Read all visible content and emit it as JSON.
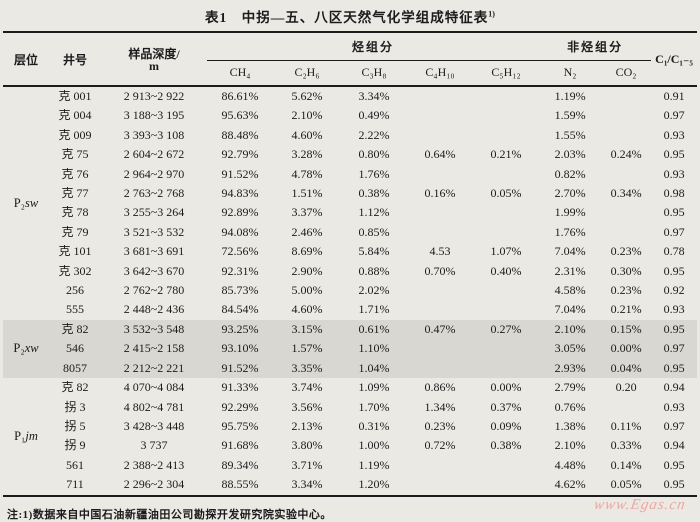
{
  "title": {
    "text": "表1　中拐—五、八区天然气化学组成特征表",
    "superscript": "1)"
  },
  "table": {
    "headers": {
      "horizon": "层位",
      "well": "井号",
      "depth_line1": "样品深度/",
      "depth_line2": "m",
      "hydrocarbon_group": "烃组分",
      "non_hydrocarbon_group": "非烃组分",
      "ratio": "C₁/C₁₋₅",
      "components": [
        "CH₄",
        "C₂H₆",
        "C₃H₈",
        "C₄H₁₀",
        "C₅H₁₂",
        "N₂",
        "CO₂"
      ]
    },
    "groups": [
      {
        "horizon_base": "P₂",
        "horizon_italic": "sw",
        "shaded": false,
        "rows": [
          [
            "克 001",
            "2 913~2 922",
            "86.61%",
            "5.62%",
            "3.34%",
            "",
            "",
            "1.19%",
            "",
            "0.91"
          ],
          [
            "克 004",
            "3 188~3 195",
            "95.63%",
            "2.10%",
            "0.49%",
            "",
            "",
            "1.59%",
            "",
            "0.97"
          ],
          [
            "克 009",
            "3 393~3 108",
            "88.48%",
            "4.60%",
            "2.22%",
            "",
            "",
            "1.55%",
            "",
            "0.93"
          ],
          [
            "克 75",
            "2 604~2 672",
            "92.79%",
            "3.28%",
            "0.80%",
            "0.64%",
            "0.21%",
            "2.03%",
            "0.24%",
            "0.95"
          ],
          [
            "克 76",
            "2 964~2 970",
            "91.52%",
            "4.78%",
            "1.76%",
            "",
            "",
            "0.82%",
            "",
            "0.93"
          ],
          [
            "克 77",
            "2 763~2 768",
            "94.83%",
            "1.51%",
            "0.38%",
            "0.16%",
            "0.05%",
            "2.70%",
            "0.34%",
            "0.98"
          ],
          [
            "克 78",
            "3 255~3 264",
            "92.89%",
            "3.37%",
            "1.12%",
            "",
            "",
            "1.99%",
            "",
            "0.95"
          ],
          [
            "克 79",
            "3 521~3 532",
            "94.08%",
            "2.46%",
            "0.85%",
            "",
            "",
            "1.76%",
            "",
            "0.97"
          ],
          [
            "克 101",
            "3 681~3 691",
            "72.56%",
            "8.69%",
            "5.84%",
            "4.53",
            "1.07%",
            "7.04%",
            "0.23%",
            "0.78"
          ],
          [
            "克 302",
            "3 642~3 670",
            "92.31%",
            "2.90%",
            "0.88%",
            "0.70%",
            "0.40%",
            "2.31%",
            "0.30%",
            "0.95"
          ],
          [
            "256",
            "2 762~2 780",
            "85.73%",
            "5.00%",
            "2.02%",
            "",
            "",
            "4.58%",
            "0.23%",
            "0.92"
          ],
          [
            "555",
            "2 448~2 436",
            "84.54%",
            "4.60%",
            "1.71%",
            "",
            "",
            "7.04%",
            "0.21%",
            "0.93"
          ]
        ]
      },
      {
        "horizon_base": "P₂",
        "horizon_italic": "xw",
        "shaded": true,
        "rows": [
          [
            "克 82",
            "3 532~3 548",
            "93.25%",
            "3.15%",
            "0.61%",
            "0.47%",
            "0.27%",
            "2.10%",
            "0.15%",
            "0.95"
          ],
          [
            "546",
            "2 415~2 158",
            "93.10%",
            "1.57%",
            "1.10%",
            "",
            "",
            "3.05%",
            "0.00%",
            "0.97"
          ],
          [
            "8057",
            "2 212~2 221",
            "91.52%",
            "3.35%",
            "1.04%",
            "",
            "",
            "2.93%",
            "0.04%",
            "0.95"
          ]
        ]
      },
      {
        "horizon_base": "P₁",
        "horizon_italic": "jm",
        "shaded": false,
        "rows": [
          [
            "克 82",
            "4 070~4 084",
            "91.33%",
            "3.74%",
            "1.09%",
            "0.86%",
            "0.00%",
            "2.79%",
            "0.20",
            "0.94"
          ],
          [
            "拐 3",
            "4 802~4 781",
            "92.29%",
            "3.56%",
            "1.70%",
            "1.34%",
            "0.37%",
            "0.76%",
            "",
            "0.93"
          ],
          [
            "拐 5",
            "3 428~3 448",
            "95.75%",
            "2.13%",
            "0.31%",
            "0.23%",
            "0.09%",
            "1.38%",
            "0.11%",
            "0.97"
          ],
          [
            "拐 9",
            "3 737",
            "91.68%",
            "3.80%",
            "1.00%",
            "0.72%",
            "0.38%",
            "2.10%",
            "0.33%",
            "0.94"
          ],
          [
            "561",
            "2 388~2 413",
            "89.34%",
            "3.71%",
            "1.19%",
            "",
            "",
            "4.48%",
            "0.14%",
            "0.95"
          ],
          [
            "711",
            "2 296~2 304",
            "88.55%",
            "3.34%",
            "1.20%",
            "",
            "",
            "4.62%",
            "0.05%",
            "0.95"
          ]
        ]
      }
    ]
  },
  "note": "注:1)数据来自中国石油新疆油田公司勘探开发研究院实验中心。",
  "watermark": "www.Egas.cn",
  "colors": {
    "page_bg": "#ebe9e4",
    "band_bg": "#d9d7d2",
    "text": "#1b1b1b",
    "watermark": "#eda6a2"
  }
}
